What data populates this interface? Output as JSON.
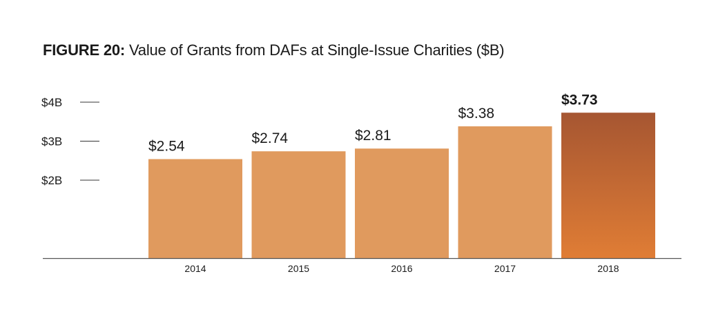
{
  "title": {
    "prefix": "FIGURE 20:",
    "text": "Value of Grants from DAFs at Single-Issue Charities ($B)"
  },
  "chart_data": {
    "type": "bar",
    "categories": [
      "2014",
      "2015",
      "2016",
      "2017",
      "2018"
    ],
    "values": [
      2.54,
      2.74,
      2.81,
      3.38,
      3.73
    ],
    "value_labels": [
      "$2.54",
      "$2.74",
      "$2.81",
      "$3.38",
      "$3.73"
    ],
    "highlight_index": 4,
    "yticks": [
      2,
      3,
      4
    ],
    "ytick_labels": [
      "$2B",
      "$3B",
      "$4B"
    ],
    "ylim": [
      0,
      4
    ],
    "grid": false,
    "legend": "none",
    "colors": {
      "bar": "#e09a5e",
      "highlight_top": "#a65632",
      "highlight_bottom": "#e07d35",
      "axis": "#555555",
      "tick": "#333333"
    }
  }
}
